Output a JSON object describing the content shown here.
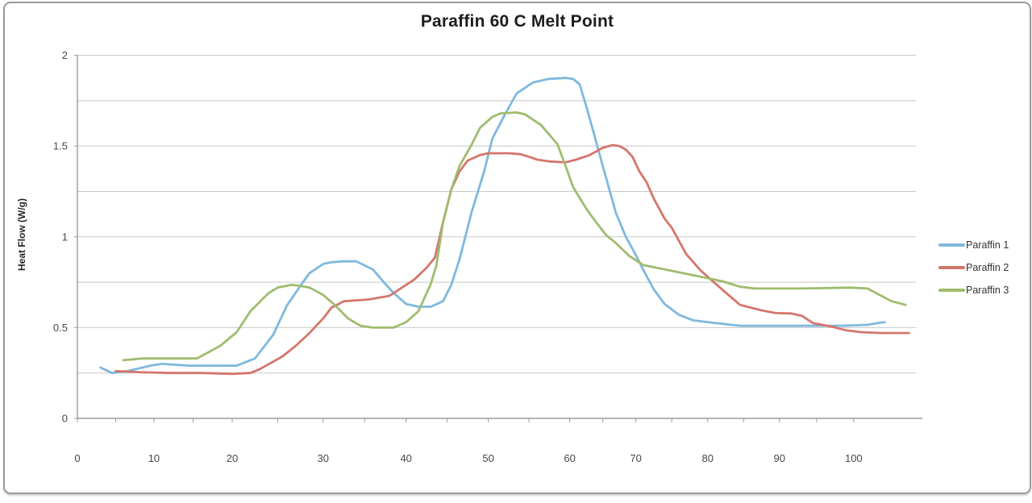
{
  "window": {
    "background_color": "#ffffff",
    "border_color": "#9a9a9a"
  },
  "chart_data": {
    "type": "line",
    "title": "Paraffin 60 C Melt Point",
    "xlabel": "",
    "ylabel": "Heat Flow (W/g)",
    "xlim": [
      0,
      109
    ],
    "ylim": [
      0,
      2
    ],
    "x_tick_labels": [
      0,
      10,
      20,
      30,
      40,
      50,
      60,
      70,
      80,
      90,
      100
    ],
    "x_minor_tick_step": 5,
    "y_tick_labels": [
      0,
      0.5,
      1,
      1.5,
      2
    ],
    "y_gridline_step": 0.25,
    "grid": "horizontal",
    "legend_position": "right",
    "gridline_color": "#c8c8c8",
    "axis_color": "#9b9b9b",
    "tick_label_color": "#474747",
    "x_scale_anchors": [
      [
        0,
        0.0
      ],
      [
        10,
        0.0913
      ],
      [
        20,
        0.1846
      ],
      [
        30,
        0.2931
      ],
      [
        40,
        0.392
      ],
      [
        50,
        0.49
      ],
      [
        60,
        0.5871
      ],
      [
        70,
        0.666
      ],
      [
        80,
        0.7517
      ],
      [
        90,
        0.8373
      ],
      [
        100,
        0.9258
      ],
      [
        109,
        1.0
      ]
    ],
    "series": [
      {
        "name": "Paraffin 1",
        "color": "#7fb8de",
        "points": [
          [
            3,
            0.28
          ],
          [
            4.5,
            0.25
          ],
          [
            6.5,
            0.26
          ],
          [
            9.5,
            0.29
          ],
          [
            11,
            0.3
          ],
          [
            14.5,
            0.29
          ],
          [
            18,
            0.29
          ],
          [
            20.5,
            0.29
          ],
          [
            22.5,
            0.33
          ],
          [
            24.5,
            0.46
          ],
          [
            26,
            0.62
          ],
          [
            27.5,
            0.73
          ],
          [
            28.5,
            0.8
          ],
          [
            30,
            0.85
          ],
          [
            31,
            0.86
          ],
          [
            32.5,
            0.865
          ],
          [
            34,
            0.865
          ],
          [
            36,
            0.82
          ],
          [
            37.5,
            0.74
          ],
          [
            38.5,
            0.69
          ],
          [
            40,
            0.63
          ],
          [
            41.5,
            0.615
          ],
          [
            43,
            0.615
          ],
          [
            44.5,
            0.645
          ],
          [
            45.5,
            0.735
          ],
          [
            46.5,
            0.875
          ],
          [
            48,
            1.14
          ],
          [
            49.5,
            1.36
          ],
          [
            50.5,
            1.54
          ],
          [
            52,
            1.67
          ],
          [
            53.5,
            1.79
          ],
          [
            55.5,
            1.85
          ],
          [
            57.5,
            1.87
          ],
          [
            59.5,
            1.875
          ],
          [
            60.5,
            1.87
          ],
          [
            61.5,
            1.84
          ],
          [
            62.5,
            1.72
          ],
          [
            63.5,
            1.59
          ],
          [
            65,
            1.39
          ],
          [
            66,
            1.26
          ],
          [
            67,
            1.13
          ],
          [
            68.5,
            1.0
          ],
          [
            70,
            0.9
          ],
          [
            71,
            0.82
          ],
          [
            72.5,
            0.71
          ],
          [
            74,
            0.63
          ],
          [
            76,
            0.57
          ],
          [
            78,
            0.54
          ],
          [
            81,
            0.525
          ],
          [
            84.5,
            0.51
          ],
          [
            90,
            0.51
          ],
          [
            95,
            0.51
          ],
          [
            98.5,
            0.51
          ],
          [
            102,
            0.515
          ],
          [
            103.5,
            0.525
          ],
          [
            104.5,
            0.53
          ]
        ]
      },
      {
        "name": "Paraffin 2",
        "color": "#d4766b",
        "points": [
          [
            5,
            0.26
          ],
          [
            8,
            0.255
          ],
          [
            12,
            0.25
          ],
          [
            16,
            0.25
          ],
          [
            20,
            0.245
          ],
          [
            22,
            0.25
          ],
          [
            23,
            0.27
          ],
          [
            25.5,
            0.34
          ],
          [
            27,
            0.4
          ],
          [
            28.5,
            0.47
          ],
          [
            30,
            0.55
          ],
          [
            31,
            0.61
          ],
          [
            32.5,
            0.645
          ],
          [
            34,
            0.65
          ],
          [
            35.5,
            0.655
          ],
          [
            38,
            0.675
          ],
          [
            39.5,
            0.72
          ],
          [
            41,
            0.765
          ],
          [
            42.5,
            0.83
          ],
          [
            43.5,
            0.885
          ],
          [
            44.5,
            1.08
          ],
          [
            45.5,
            1.26
          ],
          [
            46.5,
            1.36
          ],
          [
            47.5,
            1.42
          ],
          [
            49,
            1.45
          ],
          [
            50,
            1.46
          ],
          [
            52.5,
            1.46
          ],
          [
            54,
            1.455
          ],
          [
            55,
            1.44
          ],
          [
            56,
            1.425
          ],
          [
            57.5,
            1.415
          ],
          [
            59.5,
            1.41
          ],
          [
            61,
            1.425
          ],
          [
            63,
            1.45
          ],
          [
            65,
            1.49
          ],
          [
            66.5,
            1.505
          ],
          [
            67.5,
            1.5
          ],
          [
            68.5,
            1.48
          ],
          [
            69.5,
            1.44
          ],
          [
            70.5,
            1.36
          ],
          [
            71.5,
            1.3
          ],
          [
            72.5,
            1.21
          ],
          [
            74,
            1.1
          ],
          [
            75,
            1.05
          ],
          [
            77,
            0.905
          ],
          [
            79,
            0.815
          ],
          [
            82,
            0.71
          ],
          [
            84.5,
            0.625
          ],
          [
            87.5,
            0.595
          ],
          [
            89.5,
            0.58
          ],
          [
            91.5,
            0.578
          ],
          [
            93,
            0.565
          ],
          [
            94.5,
            0.525
          ],
          [
            97,
            0.505
          ],
          [
            99,
            0.485
          ],
          [
            101,
            0.475
          ],
          [
            104,
            0.47
          ],
          [
            108,
            0.47
          ]
        ]
      },
      {
        "name": "Paraffin 3",
        "color": "#9fbc6e",
        "points": [
          [
            6,
            0.32
          ],
          [
            8.5,
            0.33
          ],
          [
            12,
            0.33
          ],
          [
            15.5,
            0.33
          ],
          [
            18.5,
            0.4
          ],
          [
            20.5,
            0.475
          ],
          [
            22,
            0.59
          ],
          [
            24,
            0.69
          ],
          [
            25,
            0.72
          ],
          [
            26.5,
            0.735
          ],
          [
            27.5,
            0.73
          ],
          [
            28.5,
            0.72
          ],
          [
            30,
            0.68
          ],
          [
            31.5,
            0.62
          ],
          [
            33,
            0.55
          ],
          [
            34.5,
            0.51
          ],
          [
            36,
            0.5
          ],
          [
            38.5,
            0.5
          ],
          [
            40,
            0.53
          ],
          [
            41.5,
            0.59
          ],
          [
            43,
            0.74
          ],
          [
            43.7,
            0.845
          ],
          [
            44.5,
            1.08
          ],
          [
            45.5,
            1.26
          ],
          [
            46.5,
            1.39
          ],
          [
            48,
            1.51
          ],
          [
            49,
            1.6
          ],
          [
            50.5,
            1.66
          ],
          [
            51.5,
            1.68
          ],
          [
            53.5,
            1.685
          ],
          [
            54.5,
            1.675
          ],
          [
            56.5,
            1.615
          ],
          [
            58.5,
            1.51
          ],
          [
            59.5,
            1.39
          ],
          [
            60.5,
            1.275
          ],
          [
            62.5,
            1.155
          ],
          [
            64,
            1.08
          ],
          [
            65.5,
            1.01
          ],
          [
            67,
            0.965
          ],
          [
            69,
            0.895
          ],
          [
            71,
            0.845
          ],
          [
            73.5,
            0.825
          ],
          [
            76.5,
            0.8
          ],
          [
            79,
            0.78
          ],
          [
            82,
            0.755
          ],
          [
            84.5,
            0.725
          ],
          [
            86.5,
            0.715
          ],
          [
            93,
            0.715
          ],
          [
            99.5,
            0.72
          ],
          [
            102,
            0.715
          ],
          [
            103.5,
            0.685
          ],
          [
            105.5,
            0.645
          ],
          [
            107.5,
            0.625
          ]
        ]
      }
    ]
  }
}
